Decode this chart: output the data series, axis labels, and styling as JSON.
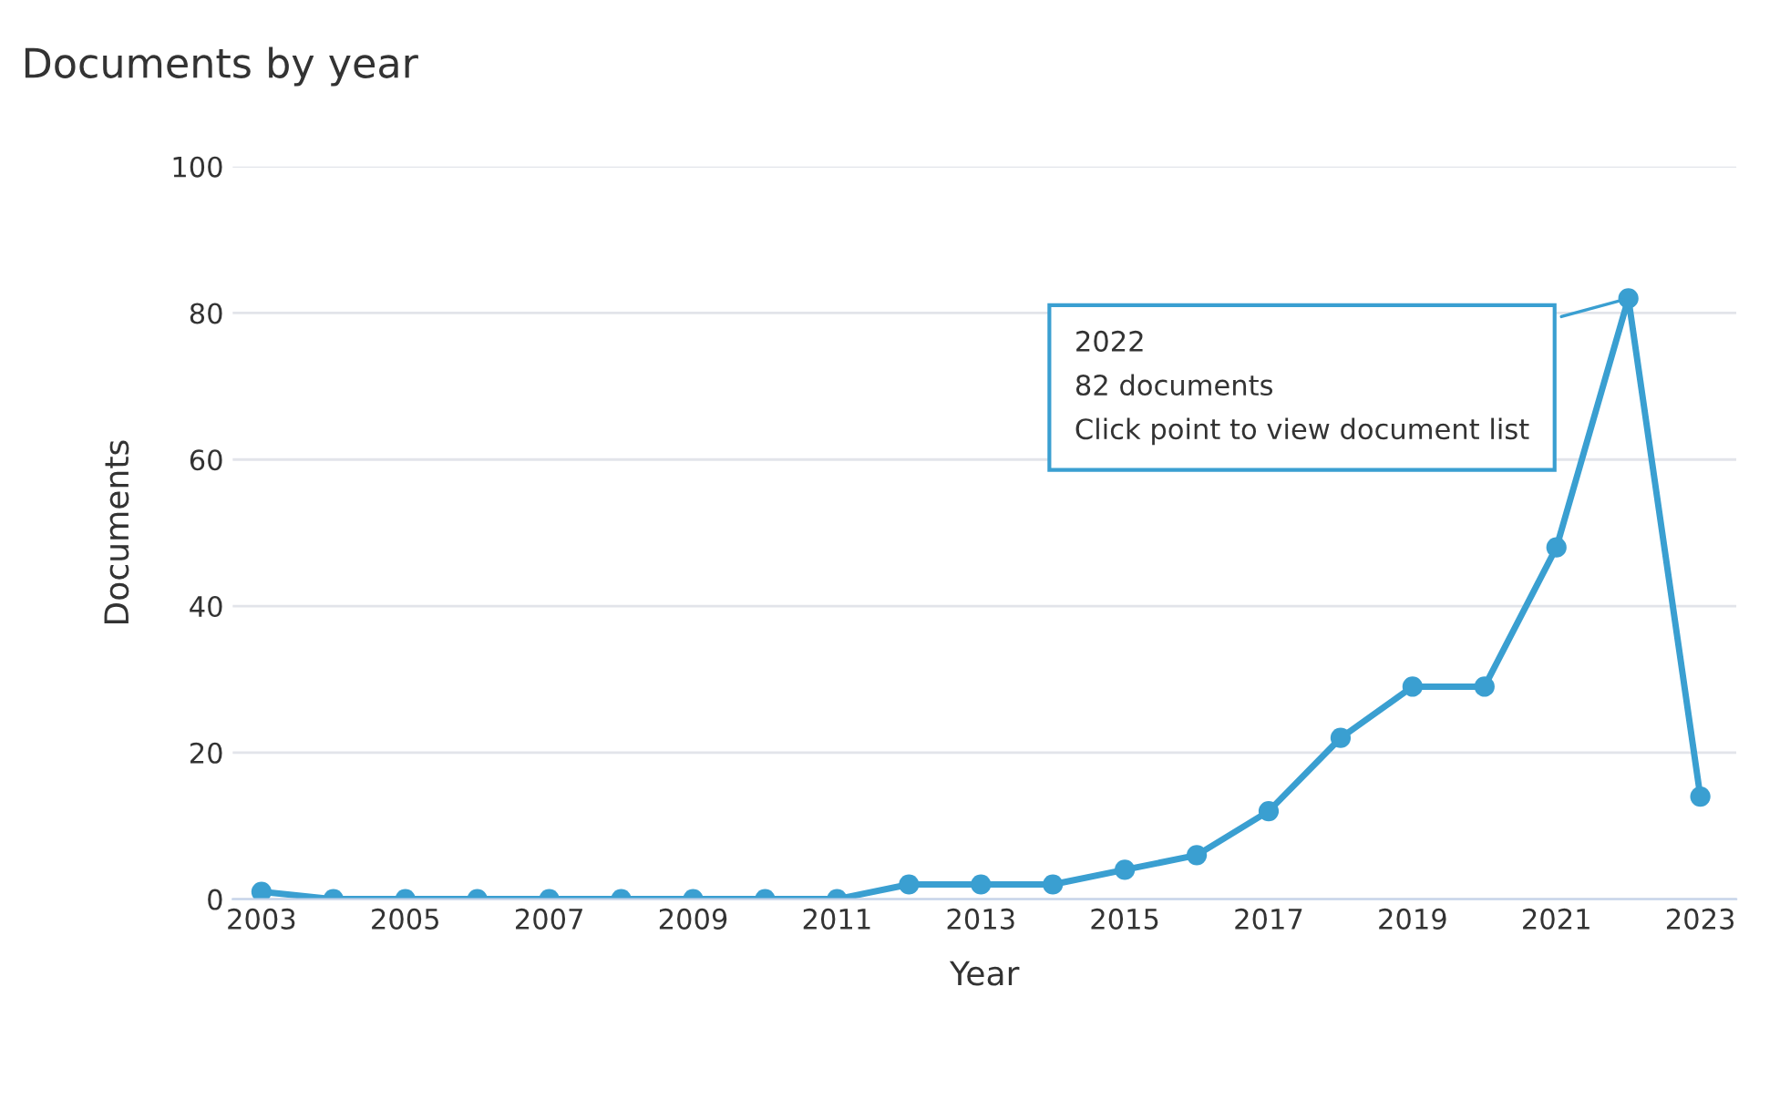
{
  "chart_data": {
    "type": "line",
    "title": "Documents by year",
    "xlabel": "Year",
    "ylabel": "Documents",
    "x": [
      2003,
      2004,
      2005,
      2006,
      2007,
      2008,
      2009,
      2010,
      2011,
      2012,
      2013,
      2014,
      2015,
      2016,
      2017,
      2018,
      2019,
      2020,
      2021,
      2022,
      2023
    ],
    "series": [
      {
        "color": "#3a9fd1",
        "values": [
          1,
          0,
          0,
          0,
          0,
          0,
          0,
          0,
          0,
          2,
          2,
          2,
          4,
          6,
          12,
          22,
          29,
          29,
          48,
          82,
          14
        ]
      }
    ],
    "xlim": [
      2002.6,
      2023.5
    ],
    "xticks": [
      2003,
      2005,
      2007,
      2009,
      2011,
      2013,
      2015,
      2017,
      2019,
      2021,
      2023
    ],
    "ylim": [
      0,
      100
    ],
    "yticks": [
      0,
      20,
      40,
      60,
      80,
      100
    ],
    "grid": "y",
    "marker": "circle",
    "line_style": "solid",
    "annotations": [
      {
        "text": "2022\n82 documents\nClick point to view document list",
        "x": 2022,
        "y": 82
      }
    ]
  }
}
